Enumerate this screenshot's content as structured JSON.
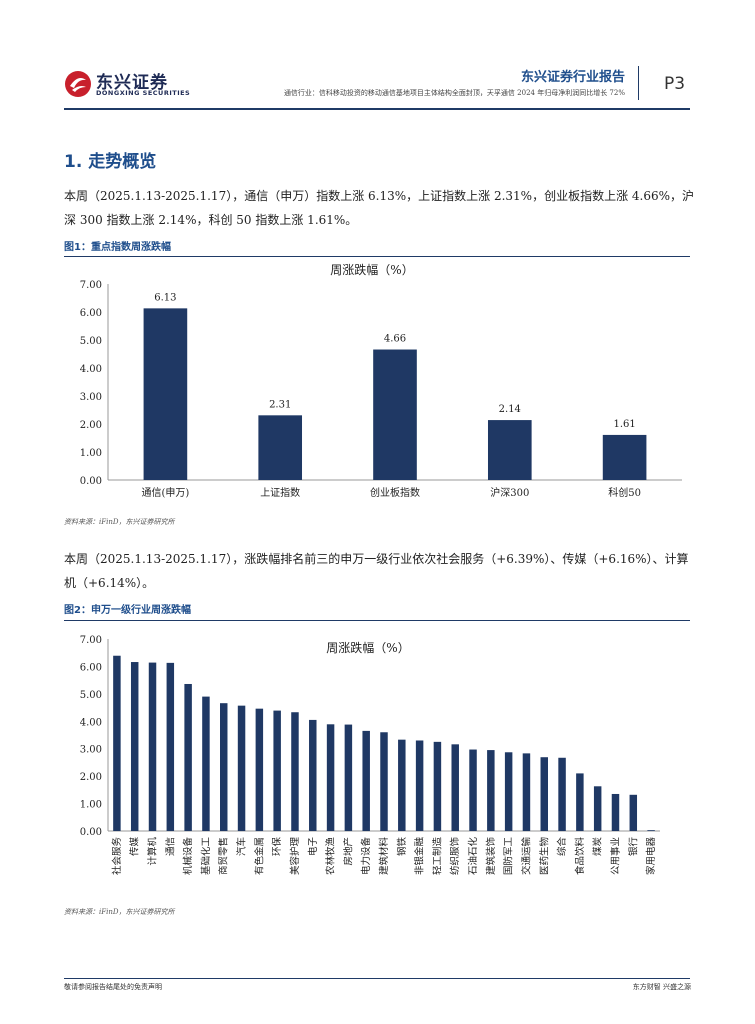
{
  "header": {
    "logo_cn": "东兴证券",
    "logo_en": "DONGXING SECURITIES",
    "report_title": "东兴证券行业报告",
    "subtitle": "通信行业：信科移动投资的移动通信基地项目主体结构全面封顶，天孚通信 2024 年归母净利润同比增长 72%",
    "page_number": "P3"
  },
  "section": {
    "title": "1. 走势概览",
    "para1": "本周（2025.1.13-2025.1.17），通信（申万）指数上涨 6.13%，上证指数上涨 2.31%，创业板指数上涨 4.66%，沪深 300 指数上涨 2.14%，科创 50 指数上涨 1.61%。",
    "para2": "本周（2025.1.13-2025.1.17），涨跌幅排名前三的申万一级行业依次社会服务（+6.39%）、传媒（+6.16%）、计算机（+6.14%）。"
  },
  "figure1": {
    "caption": "图1：重点指数周涨跌幅",
    "source": "资料来源：iFinD，东兴证券研究所"
  },
  "figure2": {
    "caption": "图2：申万一级行业周涨跌幅",
    "source": "资料来源：iFinD，东兴证券研究所"
  },
  "chart_data": [
    {
      "type": "bar",
      "title": "周涨跌幅（%）",
      "categories": [
        "通信(申万)",
        "上证指数",
        "创业板指数",
        "沪深300",
        "科创50"
      ],
      "values": [
        6.13,
        2.31,
        4.66,
        2.14,
        1.61
      ],
      "data_labels": [
        "6.13",
        "2.31",
        "4.66",
        "2.14",
        "1.61"
      ],
      "ylim": [
        0,
        7
      ],
      "yticks": [
        "0.00",
        "1.00",
        "2.00",
        "3.00",
        "4.00",
        "5.00",
        "6.00",
        "7.00"
      ],
      "color": "#1f3864"
    },
    {
      "type": "bar",
      "title": "周涨跌幅（%）",
      "categories": [
        "社会服务",
        "传媒",
        "计算机",
        "通信",
        "机械设备",
        "基础化工",
        "商贸零售",
        "汽车",
        "有色金属",
        "环保",
        "美容护理",
        "电子",
        "农林牧渔",
        "房地产",
        "电力设备",
        "建筑材料",
        "钢铁",
        "非银金融",
        "轻工制造",
        "纺织服饰",
        "石油石化",
        "建筑装饰",
        "国防军工",
        "交通运输",
        "医药生物",
        "综合",
        "食品饮料",
        "煤炭",
        "公用事业",
        "银行",
        "家用电器"
      ],
      "values": [
        6.39,
        6.16,
        6.14,
        6.13,
        5.36,
        4.9,
        4.66,
        4.57,
        4.46,
        4.39,
        4.33,
        4.05,
        3.89,
        3.88,
        3.65,
        3.6,
        3.33,
        3.3,
        3.25,
        3.16,
        2.97,
        2.95,
        2.87,
        2.83,
        2.69,
        2.67,
        2.1,
        1.63,
        1.35,
        1.32,
        0.03
      ],
      "ylim": [
        0,
        7
      ],
      "yticks": [
        "0.00",
        "1.00",
        "2.00",
        "3.00",
        "4.00",
        "5.00",
        "6.00",
        "7.00"
      ],
      "color": "#1f3864"
    }
  ],
  "footer": {
    "left": "敬请参阅报告结尾处的免责声明",
    "right": "东方财智  兴盛之源"
  }
}
